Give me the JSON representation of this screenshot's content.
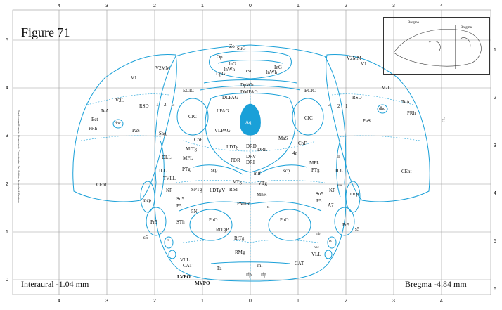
{
  "figure_title": "Figure 71",
  "interaural": "Interaural -1.04 mm",
  "bregma": "Bregma -4.84 mm",
  "side_credit": "The Mouse Brain in Stereotaxic Coordinates 3rd Edition Franklin & Paxinos",
  "axis_top": [
    "4",
    "3",
    "2",
    "1",
    "0",
    "1",
    "2",
    "3",
    "4"
  ],
  "axis_bottom": [
    "4",
    "3",
    "2",
    "1",
    "0",
    "1",
    "2",
    "3",
    "4"
  ],
  "axis_left": [
    "5",
    "4",
    "3",
    "2",
    "1",
    "0"
  ],
  "axis_right": [
    "1",
    "2",
    "3",
    "4",
    "5",
    "6"
  ],
  "inset": {
    "title_left": "Bregma",
    "title_right": "Bregma"
  },
  "labels": {
    "zo": "Zo",
    "sug": "SuG",
    "op": "Op",
    "ing_l": "InG",
    "ing_r": "InG",
    "inwh_l": "InWh",
    "inwh_r": "InWh",
    "csc": "csc",
    "dpg": "DpG",
    "dpwh": "DpWh",
    "dmpag": "DMPAG",
    "dlpag": "DLPAG",
    "ecic_l": "ECIC",
    "ecic_r": "ECIC",
    "v2mm_l": "V2MM",
    "v2mm_r": "V2MM",
    "v1_l": "V1",
    "v1_r": "V1",
    "v2l_l": "V2L",
    "v2l_r": "V2L",
    "rsd_l": "RSD",
    "rsd_r": "RSD",
    "tea_l": "TeA",
    "tea_r": "TeA",
    "ect": "Ect",
    "prh_l": "PRh",
    "prh_r": "PRh",
    "dhc_l": "dhc",
    "dhc_r": "dhc",
    "pas_l": "PaS",
    "pas_r": "PaS",
    "rf": "rf",
    "one": "1",
    "two": "2",
    "three": "3",
    "two_r": "2",
    "one_r": "1",
    "three_r": "3",
    "cic_l": "CIC",
    "cic_r": "CIC",
    "lpag": "LPAG",
    "aq": "Aq",
    "vlpag": "VLPAG",
    "sag": "Sag",
    "cnf_l": "CnF",
    "cnf_r": "CnF",
    "mitg": "MiTg",
    "mpl_l": "MPL",
    "mpl_r": "MPL",
    "dll": "DLL",
    "ill_l": "ILL",
    "ill_r": "ILL",
    "ptg_l": "PTg",
    "ptg_r": "PTg",
    "tvll": "TVLL",
    "ii": "ll",
    "ldtg": "LDTg",
    "drd": "DRD",
    "drl": "DRL",
    "drv": "DRV",
    "dri": "DRI",
    "mas": "MaS",
    "fourn": "4n",
    "pdr": "PDR",
    "scp_l": "scp",
    "scp_r": "scp",
    "mlf": "mlf",
    "kf_l": "KF",
    "kf_r": "KF",
    "sptg": "SPTg",
    "ldtgv": "LDTgV",
    "vtg_l": "VTg",
    "vtg_r": "VTg",
    "rbd": "Rbd",
    "mnr": "MnR",
    "pmnr": "PMnR",
    "ts": "ts",
    "su5_l": "Su5",
    "su5_r": "Su5",
    "p5_l": "P5",
    "p5_r": "P5",
    "fiven": "5N",
    "a7": "A7",
    "mcp_l": "mcp",
    "mcp_r": "mcp",
    "cent_l": "CEnt",
    "cent_r": "CEnt",
    "sth": "STh",
    "pr5_l": "Pr5",
    "pr5_r": "Pr5",
    "s5_l": "s5",
    "s5_r": "s5",
    "pno_l": "PnO",
    "pno_r": "PnO",
    "ritgp": "RtTgP",
    "rttg": "RtTg",
    "rmg": "RMg",
    "vll_l": "VLL",
    "vll_r": "VLL",
    "cat_l": "CAT",
    "cat_r": "CAT",
    "tz": "Tz",
    "ml": "ml",
    "lfp_l": "lfp",
    "lfp_r": "lfp",
    "lvpo": "LVPO",
    "mvpo": "MVPO",
    "rs_l": "rs",
    "rs_r": "rs",
    "mb": "mb",
    "unc_l": "unc",
    "unc_r": "unc",
    "vsc": "vsc"
  },
  "colors": {
    "outline": "#1aa0d8",
    "aqueduct": "#1aa0d8",
    "grid": "#999999"
  }
}
